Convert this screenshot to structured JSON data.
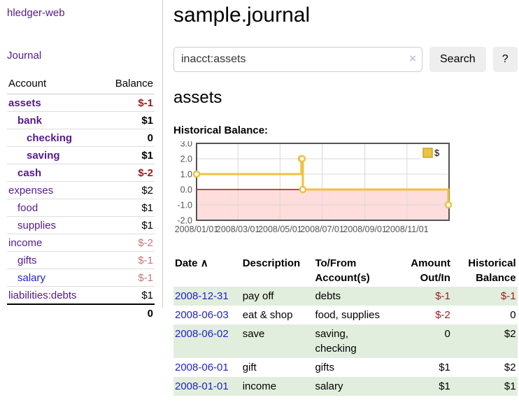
{
  "sidebar": {
    "app_title": "hledger-web",
    "nav": {
      "journal": "Journal"
    },
    "table": {
      "account_header": "Account",
      "balance_header": "Balance",
      "accounts": [
        {
          "name": "assets",
          "level": 0,
          "bold": true,
          "balance": "$-1",
          "balance_class": "neg-strong",
          "link_style": "visited"
        },
        {
          "name": "bank",
          "level": 1,
          "bold": true,
          "balance": "$1",
          "balance_class": "",
          "link_style": "visited"
        },
        {
          "name": "checking",
          "level": 2,
          "bold": true,
          "balance": "0",
          "balance_class": "",
          "link_style": "visited"
        },
        {
          "name": "saving",
          "level": 2,
          "bold": true,
          "balance": "$1",
          "balance_class": "",
          "link_style": "visited"
        },
        {
          "name": "cash",
          "level": 1,
          "bold": true,
          "balance": "$-2",
          "balance_class": "neg-strong",
          "link_style": "visited"
        },
        {
          "name": "expenses",
          "level": 0,
          "bold": false,
          "balance": "$2",
          "balance_class": "",
          "link_style": "visited"
        },
        {
          "name": "food",
          "level": 1,
          "bold": false,
          "balance": "$1",
          "balance_class": "",
          "link_style": "visited"
        },
        {
          "name": "supplies",
          "level": 1,
          "bold": false,
          "balance": "$1",
          "balance_class": "",
          "link_style": "visited"
        },
        {
          "name": "income",
          "level": 0,
          "bold": false,
          "balance": "$-2",
          "balance_class": "neg-soft",
          "link_style": "visited"
        },
        {
          "name": "gifts",
          "level": 1,
          "bold": false,
          "balance": "$-1",
          "balance_class": "neg-soft",
          "link_style": "visited"
        },
        {
          "name": "salary",
          "level": 1,
          "bold": false,
          "balance": "$-1",
          "balance_class": "neg-soft",
          "link_style": "unvisited"
        },
        {
          "name": "liabilities:debts",
          "level": 0,
          "bold": false,
          "balance": "$1",
          "balance_class": "",
          "link_style": "visited"
        }
      ],
      "total": "0"
    }
  },
  "main": {
    "title": "sample.journal",
    "search": {
      "query": "inacct:assets",
      "clear_icon": "×",
      "button_label": "Search",
      "help_label": "?"
    },
    "account_heading": "assets",
    "chart_heading": "Historical Balance:"
  },
  "chart_data": {
    "type": "line",
    "style": "step",
    "title": "Historical Balance:",
    "xlim": [
      "2008-01-01",
      "2009-01-01"
    ],
    "ylim": [
      -2,
      3
    ],
    "grid": true,
    "legend_position": "top-right",
    "series": [
      {
        "name": "$",
        "color": "#edc240",
        "swatch_border": "#c9a52f",
        "points": [
          [
            "2008-01-01",
            1
          ],
          [
            "2008-06-01",
            2
          ],
          [
            "2008-06-02",
            2
          ],
          [
            "2008-06-03",
            0
          ],
          [
            "2008-12-31",
            -1
          ]
        ]
      }
    ],
    "x_ticks": [
      {
        "date": "2008-01-01",
        "label": "2008/01/01"
      },
      {
        "date": "2008-03-01",
        "label": "2008/03/01"
      },
      {
        "date": "2008-05-01",
        "label": "2008/05/01"
      },
      {
        "date": "2008-07-01",
        "label": "2008/07/01"
      },
      {
        "date": "2008-09-01",
        "label": "2008/09/01"
      },
      {
        "date": "2008-11-01",
        "label": "2008/11/01"
      }
    ],
    "y_ticks": [
      {
        "value": 3,
        "label": "3.0"
      },
      {
        "value": 2,
        "label": "2.0"
      },
      {
        "value": 1,
        "label": "1.0"
      },
      {
        "value": 0,
        "label": "0.0"
      },
      {
        "value": -1,
        "label": "-1.0"
      },
      {
        "value": -2,
        "label": "-2.0"
      }
    ],
    "negative_region_color": "#ffdddd",
    "zero_line_color": "#aa1111",
    "grid_color": "#d8d8d8",
    "border_color": "#545454",
    "tick_label_color": "#545454"
  },
  "register": {
    "headers": {
      "date": "Date",
      "sort_indicator": "∧",
      "description": "Description",
      "accounts": "To/From Account(s)",
      "amount": "Amount Out/In",
      "balance": "Historical Balance"
    },
    "rows": [
      {
        "date": "2008-12-31",
        "description": "pay off",
        "accounts": "debts",
        "amount": "$-1",
        "amount_neg": true,
        "balance": "$-1",
        "balance_neg": true,
        "highlight": true
      },
      {
        "date": "2008-06-03",
        "description": "eat & shop",
        "accounts": "food, supplies",
        "amount": "$-2",
        "amount_neg": true,
        "balance": "0",
        "balance_neg": false,
        "highlight": false
      },
      {
        "date": "2008-06-02",
        "description": "save",
        "accounts": "saving, checking",
        "amount": "0",
        "amount_neg": false,
        "balance": "$2",
        "balance_neg": false,
        "highlight": true
      },
      {
        "date": "2008-06-01",
        "description": "gift",
        "accounts": "gifts",
        "amount": "$1",
        "amount_neg": false,
        "balance": "$2",
        "balance_neg": false,
        "highlight": false
      },
      {
        "date": "2008-01-01",
        "description": "income",
        "accounts": "salary",
        "amount": "$1",
        "amount_neg": false,
        "balance": "$1",
        "balance_neg": false,
        "highlight": true
      }
    ]
  },
  "colors": {
    "link_visited_purple": "#551a8b",
    "link_blue": "#2222cc",
    "negative_strong_red": "#9b1b1b",
    "negative_soft_red": "#c57676",
    "row_highlight_green": "#e2eedd",
    "series_gold": "#edc240",
    "negative_region_pink": "#ffdddd",
    "zero_line_red": "#aa1111",
    "chart_border_gray": "#545454"
  }
}
